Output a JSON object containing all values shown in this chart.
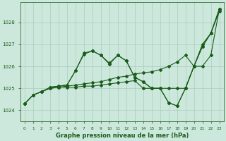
{
  "background_color": "#cce8dc",
  "grid_color": "#aaccbb",
  "line_color": "#1a5c1a",
  "title": "Graphe pression niveau de la mer (hPa)",
  "xlim": [
    -0.5,
    23.5
  ],
  "ylim": [
    1023.5,
    1028.9
  ],
  "yticks": [
    1024,
    1025,
    1026,
    1027,
    1028
  ],
  "xticks": [
    0,
    1,
    2,
    3,
    4,
    5,
    6,
    7,
    8,
    9,
    10,
    11,
    12,
    13,
    14,
    15,
    16,
    17,
    18,
    19,
    20,
    21,
    22,
    23
  ],
  "lines": [
    {
      "x": [
        0,
        1,
        2,
        3,
        4,
        5,
        6,
        7,
        8,
        9,
        10,
        11,
        12,
        13,
        14,
        15,
        16,
        17,
        18,
        19,
        20,
        21,
        22,
        23
      ],
      "y": [
        1024.3,
        1024.7,
        1024.85,
        1025.0,
        1025.05,
        1025.1,
        1025.15,
        1025.2,
        1025.25,
        1025.3,
        1025.4,
        1025.5,
        1025.55,
        1025.65,
        1025.7,
        1025.75,
        1025.85,
        1026.0,
        1026.2,
        1026.5,
        1026.0,
        1026.0,
        1026.5,
        1028.6
      ]
    },
    {
      "x": [
        0,
        1,
        2,
        3,
        4,
        5,
        6,
        7,
        8,
        9,
        10,
        11,
        12,
        13,
        14,
        15,
        16,
        17,
        18,
        19,
        20,
        21,
        22,
        23
      ],
      "y": [
        1024.3,
        1024.7,
        1024.85,
        1025.05,
        1025.1,
        1025.15,
        1025.8,
        1026.55,
        1026.7,
        1026.5,
        1026.15,
        1026.5,
        1026.25,
        1025.5,
        1025.3,
        1025.0,
        1025.0,
        1024.35,
        1024.2,
        1025.0,
        1026.0,
        1026.9,
        1027.5,
        1028.6
      ]
    },
    {
      "x": [
        0,
        1,
        2,
        3,
        4,
        5,
        6,
        7,
        8,
        9,
        10,
        11,
        12,
        13,
        14,
        15,
        16,
        17,
        18,
        19,
        20,
        21,
        22,
        23
      ],
      "y": [
        1024.3,
        1024.7,
        1024.85,
        1025.0,
        1025.05,
        1025.05,
        1025.05,
        1025.1,
        1025.1,
        1025.15,
        1025.2,
        1025.25,
        1025.3,
        1025.35,
        1025.0,
        1025.0,
        1025.0,
        1025.0,
        1025.0,
        1025.0,
        1026.0,
        1027.0,
        1027.5,
        1028.5
      ]
    },
    {
      "x": [
        3,
        4,
        5,
        6,
        7,
        8,
        9,
        10,
        11,
        12,
        13,
        14,
        15,
        16,
        17,
        18,
        19,
        20,
        21,
        22,
        23
      ],
      "y": [
        1025.05,
        1025.1,
        1025.15,
        1025.8,
        1026.6,
        1026.7,
        1026.5,
        1026.1,
        1026.5,
        1026.25,
        1025.5,
        1025.3,
        1025.0,
        1025.0,
        1024.35,
        1024.2,
        1025.0,
        1026.0,
        1026.9,
        1027.5,
        1028.6
      ]
    }
  ]
}
